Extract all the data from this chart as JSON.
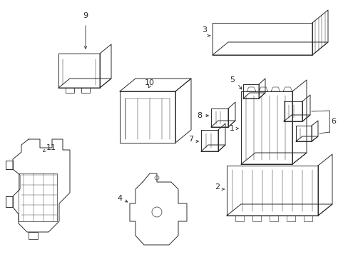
{
  "bg_color": "#ffffff",
  "line_color": "#2a2a2a",
  "line_width": 0.7,
  "figsize": [
    4.89,
    3.6
  ],
  "dpi": 100
}
